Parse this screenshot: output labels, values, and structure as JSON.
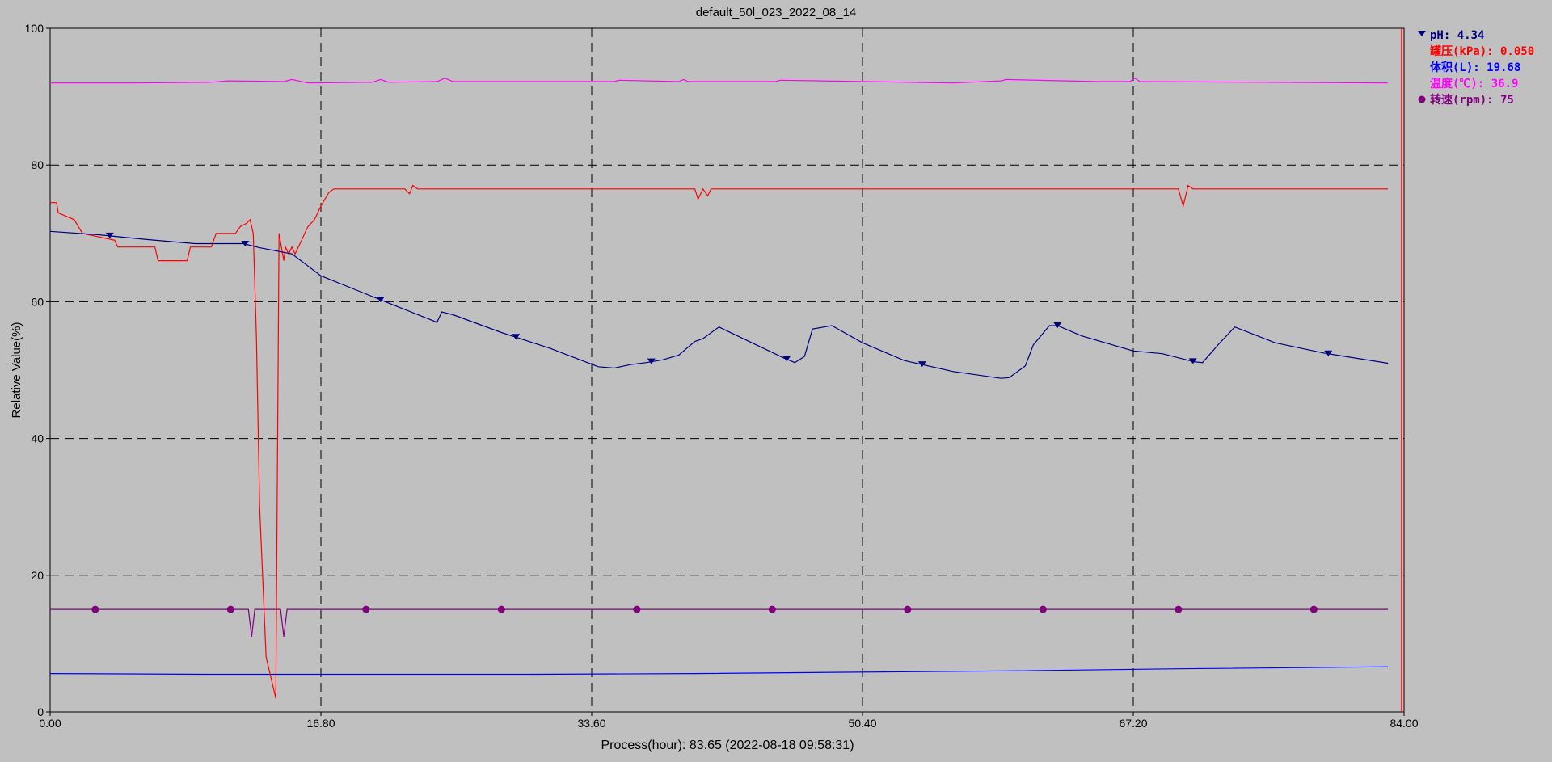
{
  "chart_data": {
    "type": "line",
    "title": "default_50l_023_2022_08_14",
    "xlabel": "Process(hour): 83.65 (2022-08-18 09:58:31)",
    "ylabel": "Relative Value(%)",
    "xlim": [
      0,
      84
    ],
    "ylim": [
      0,
      100
    ],
    "x_ticks": [
      "0.00",
      "16.80",
      "33.60",
      "50.40",
      "67.20",
      "84.00"
    ],
    "x_tick_values": [
      0,
      16.8,
      33.6,
      50.4,
      67.2,
      84.0
    ],
    "y_ticks": [
      "0",
      "20",
      "40",
      "60",
      "80",
      "100"
    ],
    "y_tick_values": [
      0,
      20,
      40,
      60,
      80,
      100
    ],
    "grid": true,
    "legend_position": "right",
    "series": [
      {
        "name": "pH: 4.34",
        "color": "#00007f",
        "marker": "triangle-down",
        "marker_x": [
          3.7,
          12.1,
          20.5,
          28.9,
          37.3,
          45.7,
          54.1,
          62.5,
          70.9,
          79.3
        ],
        "x": [
          0,
          3,
          6,
          9,
          10,
          12,
          13,
          15,
          16.8,
          19,
          21,
          24,
          24.3,
          25,
          28,
          31,
          34,
          35,
          36,
          37,
          38,
          39,
          40,
          40.5,
          41.5,
          43,
          45.5,
          46.2,
          46.8,
          47.3,
          48.5,
          50.4,
          53,
          56,
          59,
          59.5,
          60.5,
          61,
          62,
          62.5,
          64,
          67.2,
          69,
          71,
          71.5,
          72.5,
          73.5,
          76,
          79,
          83
        ],
        "values": [
          70.3,
          69.8,
          69.1,
          68.5,
          68.5,
          68.5,
          67.9,
          67.0,
          63.8,
          61.7,
          59.8,
          57.0,
          58.5,
          58.1,
          55.5,
          53.2,
          50.5,
          50.3,
          50.8,
          51.1,
          51.5,
          52.2,
          54.2,
          54.6,
          56.3,
          54.6,
          51.8,
          51.1,
          52.0,
          56.0,
          56.5,
          54.0,
          51.4,
          49.8,
          48.8,
          48.9,
          50.6,
          53.7,
          56.5,
          56.5,
          55.0,
          52.8,
          52.4,
          51.2,
          51.1,
          53.8,
          56.3,
          54.0,
          52.5,
          51.0
        ]
      },
      {
        "name": "罐压(kPa): 0.050",
        "color": "#ff0000",
        "x": [
          0,
          0.4,
          0.5,
          1.5,
          2,
          4,
          4.2,
          6.5,
          6.7,
          8.5,
          8.7,
          10,
          10.3,
          11.5,
          11.8,
          12.2,
          12.4,
          12.6,
          12.8,
          13.0,
          13.4,
          14.0,
          14.2,
          14.5,
          14.6,
          14.8,
          15.0,
          15.2,
          15.6,
          16.0,
          16.4,
          16.8,
          17.3,
          17.6,
          17.9,
          18.2,
          22,
          22.3,
          22.5,
          22.8,
          40,
          40.2,
          40.5,
          40.8,
          41,
          70,
          70.3,
          70.6,
          70.9,
          83
        ],
        "values": [
          74.5,
          74.5,
          73.0,
          72.0,
          70.0,
          69.0,
          68.0,
          68.0,
          66.0,
          66.0,
          68.0,
          68.0,
          70.0,
          70.0,
          71.0,
          71.5,
          72.0,
          70.0,
          55.0,
          30.0,
          8.0,
          2.0,
          70.0,
          66.0,
          68.0,
          67.0,
          68.0,
          67.0,
          69.0,
          71.0,
          72.0,
          74.0,
          76.0,
          76.5,
          76.5,
          76.5,
          76.5,
          75.8,
          77.0,
          76.5,
          76.5,
          75.0,
          76.5,
          75.5,
          76.5,
          76.5,
          74.0,
          77.0,
          76.5,
          76.5
        ]
      },
      {
        "name": "体积(L): 19.68",
        "color": "#0000ff",
        "x": [
          0,
          10,
          20,
          30,
          40,
          50,
          60,
          70,
          83
        ],
        "values": [
          5.6,
          5.5,
          5.5,
          5.5,
          5.6,
          5.8,
          6.0,
          6.3,
          6.6
        ]
      },
      {
        "name": "温度(℃): 36.9",
        "color": "#ff00ff",
        "x": [
          0,
          5,
          10,
          11,
          14.5,
          15,
          16,
          20,
          20.5,
          21,
          24,
          24.5,
          25,
          35,
          35.3,
          39,
          39.3,
          39.6,
          45,
          45.3,
          56,
          59,
          59.3,
          65,
          67,
          67.3,
          67.6,
          75,
          83
        ],
        "values": [
          92.0,
          92.0,
          92.1,
          92.3,
          92.2,
          92.5,
          92.0,
          92.1,
          92.5,
          92.1,
          92.2,
          92.7,
          92.2,
          92.2,
          92.4,
          92.2,
          92.5,
          92.2,
          92.2,
          92.4,
          92.0,
          92.3,
          92.5,
          92.2,
          92.2,
          92.7,
          92.2,
          92.1,
          92.0
        ]
      },
      {
        "name": "转速(rpm): 75",
        "color": "#800080",
        "marker": "circle",
        "marker_x": [
          2.8,
          11.2,
          19.6,
          28.0,
          36.4,
          44.8,
          53.2,
          61.6,
          70.0,
          78.4
        ],
        "x": [
          0,
          12.3,
          12.5,
          12.7,
          12.9,
          14.3,
          14.5,
          14.7,
          14.9,
          83
        ],
        "values": [
          15.0,
          15.0,
          11.0,
          15.0,
          15.0,
          15.0,
          11.0,
          15.0,
          15.0,
          15.0
        ]
      }
    ]
  }
}
